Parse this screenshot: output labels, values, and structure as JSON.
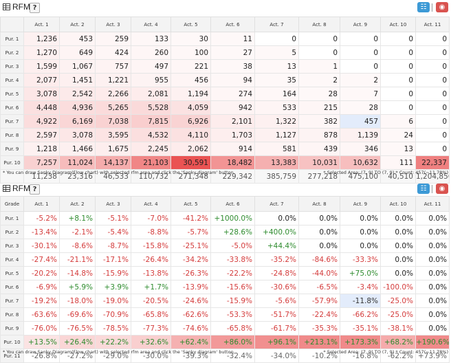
{
  "panel1": {
    "title": "RFM",
    "help": "?",
    "header": [
      "",
      "Act. 1",
      "Act. 2",
      "Act. 3",
      "Act. 4",
      "Act. 5",
      "Act. 6",
      "Act. 7",
      "Act. 8",
      "Act. 9",
      "Act. 10",
      "Act. 11"
    ],
    "rows": [
      {
        "label": "Pur. 1",
        "cells": [
          "1,236",
          "453",
          "259",
          "133",
          "30",
          "11",
          "0",
          "0",
          "0",
          "0",
          "0"
        ]
      },
      {
        "label": "Pur. 2",
        "cells": [
          "1,270",
          "649",
          "424",
          "260",
          "100",
          "27",
          "5",
          "0",
          "0",
          "0",
          "0"
        ]
      },
      {
        "label": "Pur. 3",
        "cells": [
          "1,599",
          "1,067",
          "757",
          "497",
          "221",
          "38",
          "13",
          "1",
          "0",
          "0",
          "0"
        ]
      },
      {
        "label": "Pur. 4",
        "cells": [
          "2,077",
          "1,451",
          "1,221",
          "955",
          "456",
          "94",
          "35",
          "2",
          "2",
          "0",
          "0"
        ]
      },
      {
        "label": "Pur. 5",
        "cells": [
          "3,078",
          "2,542",
          "2,266",
          "2,081",
          "1,194",
          "274",
          "164",
          "28",
          "7",
          "0",
          "0"
        ]
      },
      {
        "label": "Pur. 6",
        "cells": [
          "4,448",
          "4,936",
          "5,265",
          "5,528",
          "4,059",
          "942",
          "533",
          "215",
          "28",
          "0",
          "0"
        ]
      },
      {
        "label": "Pur. 7",
        "cells": [
          "4,922",
          "6,169",
          "7,038",
          "7,815",
          "6,926",
          "2,101",
          "1,322",
          "382",
          "457",
          "6",
          "0"
        ]
      },
      {
        "label": "Pur. 8",
        "cells": [
          "2,597",
          "3,078",
          "3,595",
          "4,532",
          "4,110",
          "1,703",
          "1,127",
          "878",
          "1,139",
          "24",
          "0"
        ]
      },
      {
        "label": "Pur. 9",
        "cells": [
          "1,218",
          "1,466",
          "1,675",
          "2,245",
          "2,062",
          "914",
          "581",
          "439",
          "346",
          "13",
          "0"
        ]
      },
      {
        "label": "Pur. 10",
        "cells": [
          "7,257",
          "11,024",
          "14,137",
          "21,103",
          "30,591",
          "18,482",
          "13,383",
          "10,031",
          "10,632",
          "111",
          "22,337"
        ]
      },
      {
        "label": "",
        "cells": [
          "11,238",
          "23,316",
          "46,533",
          "110,732",
          "271,348",
          "229,342",
          "385,759",
          "277,218",
          "475,100",
          "40,510",
          "1,204,856"
        ]
      }
    ],
    "note_left": "* You can draw Sanky Diagram(Flow chart) with selected rfm area and click the 'Sanky diagram' button.",
    "note_right": "* Selected Area: (7, 9) TO (7, 9)  * Count: 457(~11.78%)"
  },
  "panel2": {
    "title": "RFM",
    "help": "?",
    "header": [
      "Grade",
      "Act. 1",
      "Act. 2",
      "Act. 3",
      "Act. 4",
      "Act. 5",
      "Act. 6",
      "Act. 7",
      "Act. 8",
      "Act. 9",
      "Act. 10",
      "Act. 11"
    ],
    "rows": [
      {
        "label": "Pur. 1",
        "cells": [
          "-5.2%",
          "+8.1%",
          "-5.1%",
          "-7.0%",
          "-41.2%",
          "+1000.0%",
          "0.0%",
          "0.0%",
          "0.0%",
          "0.0%",
          "0.0%"
        ]
      },
      {
        "label": "Pur. 2",
        "cells": [
          "-13.4%",
          "-2.1%",
          "-5.4%",
          "-8.8%",
          "-5.7%",
          "+28.6%",
          "+400.0%",
          "0.0%",
          "0.0%",
          "0.0%",
          "0.0%"
        ]
      },
      {
        "label": "Pur. 3",
        "cells": [
          "-30.1%",
          "-8.6%",
          "-8.7%",
          "-15.8%",
          "-25.1%",
          "-5.0%",
          "+44.4%",
          "0.0%",
          "0.0%",
          "0.0%",
          "0.0%"
        ]
      },
      {
        "label": "Pur. 4",
        "cells": [
          "-27.4%",
          "-21.1%",
          "-17.1%",
          "-26.4%",
          "-34.2%",
          "-33.8%",
          "-35.2%",
          "-84.6%",
          "-33.3%",
          "0.0%",
          "0.0%"
        ]
      },
      {
        "label": "Pur. 5",
        "cells": [
          "-20.2%",
          "-14.8%",
          "-15.9%",
          "-13.8%",
          "-26.3%",
          "-22.2%",
          "-24.8%",
          "-44.0%",
          "+75.0%",
          "0.0%",
          "0.0%"
        ]
      },
      {
        "label": "Pur. 6",
        "cells": [
          "-6.9%",
          "+5.9%",
          "+3.9%",
          "+1.7%",
          "-13.9%",
          "-15.6%",
          "-30.6%",
          "-6.5%",
          "-3.4%",
          "-100.0%",
          "0.0%"
        ]
      },
      {
        "label": "Pur. 7",
        "cells": [
          "-19.2%",
          "-18.0%",
          "-19.0%",
          "-20.5%",
          "-24.6%",
          "-15.9%",
          "-5.6%",
          "-57.9%",
          "-11.8%",
          "-25.0%",
          "0.0%"
        ]
      },
      {
        "label": "Pur. 8",
        "cells": [
          "-63.6%",
          "-69.6%",
          "-70.9%",
          "-65.8%",
          "-62.6%",
          "-53.3%",
          "-51.7%",
          "-22.4%",
          "-66.2%",
          "-25.0%",
          "0.0%"
        ]
      },
      {
        "label": "Pur. 9",
        "cells": [
          "-76.0%",
          "-76.5%",
          "-78.5%",
          "-77.3%",
          "-74.6%",
          "-65.8%",
          "-61.7%",
          "-35.3%",
          "-35.1%",
          "-38.1%",
          "0.0%"
        ]
      },
      {
        "label": "Pur. 10",
        "cells": [
          "+13.5%",
          "+26.4%",
          "+22.2%",
          "+32.6%",
          "+62.4%",
          "+86.0%",
          "+96.1%",
          "+213.1%",
          "+173.3%",
          "+68.2%",
          "+190.6%"
        ]
      },
      {
        "label": "Pur. 11",
        "cells": [
          "-26.8%",
          "-27.2%",
          "-29.0%",
          "-30.0%",
          "-39.3%",
          "-32.4%",
          "-34.0%",
          "-10.2%",
          "-16.8%",
          "-62.2%",
          "+73.9%"
        ]
      }
    ],
    "note_left": "* You can draw Sanky Diagram(Flow chart) with selected rfm area and click the 'Sanky diagram' button.",
    "note_right": "* Selected Area: (7, 9) TO (7, 9)  * Count: 457(~11.78%)"
  },
  "colors": {
    "accent_blue": "#3d9ad6",
    "accent_red": "#d9534f",
    "selected": "#e3ecfb",
    "positive": "#2e8b2e",
    "negative": "#d43b3b"
  }
}
